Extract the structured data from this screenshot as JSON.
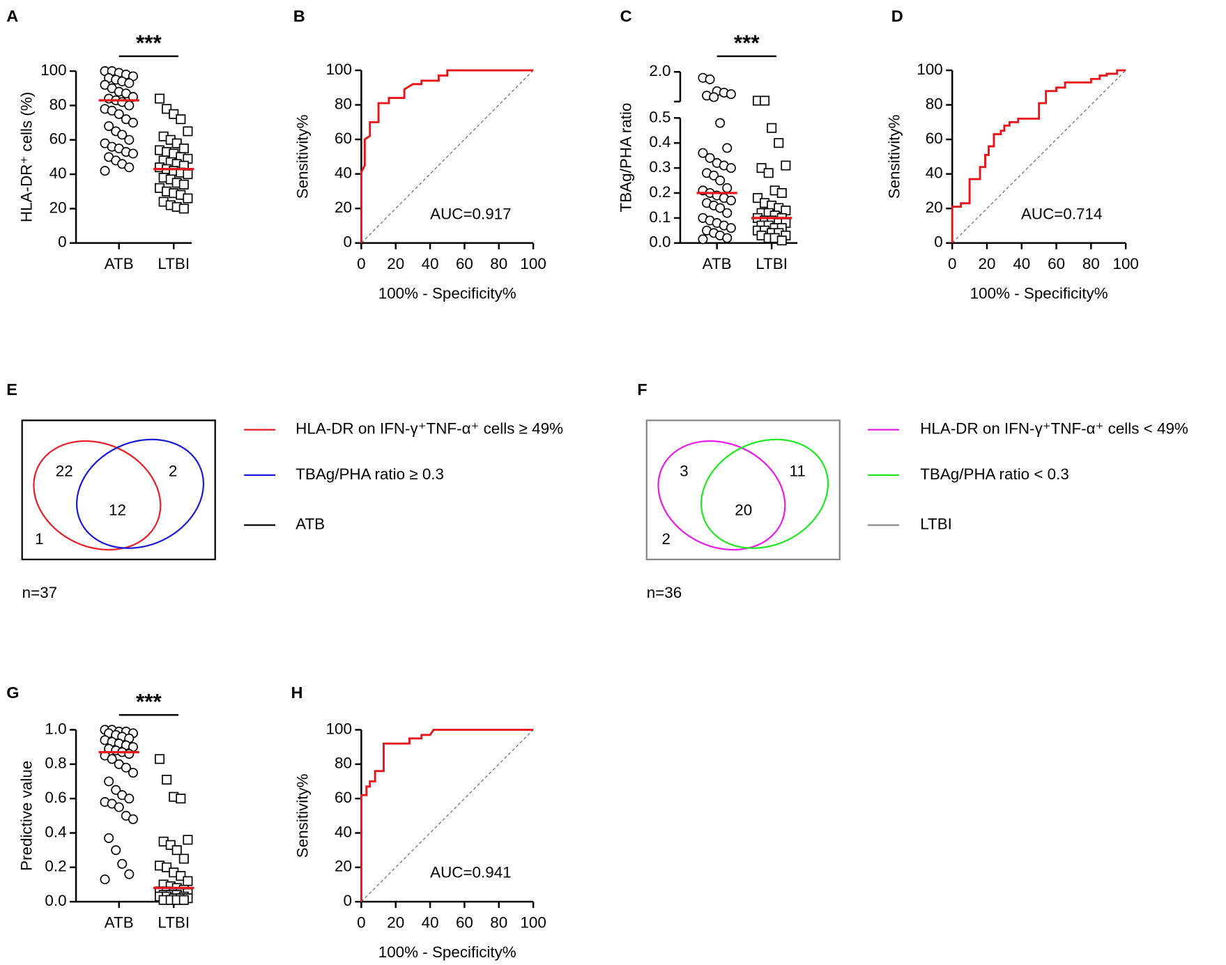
{
  "chart_data": [
    {
      "panel": "A",
      "type": "dot",
      "ylabel": "HLA-DR⁺ cells (%)",
      "categories": [
        "ATB",
        "LTBI"
      ],
      "markers": [
        "circle",
        "square"
      ],
      "values": [
        [
          100,
          100,
          99,
          98,
          97,
          96,
          95,
          94,
          93,
          92,
          90,
          88,
          87,
          85,
          84,
          83,
          82,
          80,
          78,
          77,
          75,
          72,
          70,
          68,
          65,
          63,
          60,
          58,
          56,
          55,
          53,
          52,
          50,
          48,
          46,
          44,
          42
        ],
        [
          84,
          78,
          75,
          72,
          65,
          62,
          60,
          58,
          55,
          54,
          53,
          52,
          50,
          49,
          48,
          47,
          46,
          45,
          44,
          43,
          42,
          41,
          40,
          38,
          37,
          35,
          34,
          32,
          30,
          29,
          28,
          26,
          24,
          22,
          21,
          20
        ]
      ],
      "medians": [
        83,
        43
      ],
      "median_color": "#e8151b",
      "significance": "***",
      "ylim": [
        0,
        100
      ],
      "yticks": [
        0,
        20,
        40,
        60,
        80,
        100
      ]
    },
    {
      "panel": "B",
      "type": "roc",
      "xlabel": "100% - Specificity%",
      "ylabel": "Sensitivity%",
      "annotation": "AUC=0.917",
      "color": "#e8151b",
      "x": [
        0,
        0,
        2,
        2,
        5,
        5,
        10,
        10,
        16,
        16,
        25,
        25,
        30,
        35,
        35,
        45,
        45,
        50,
        50,
        100
      ],
      "y": [
        0,
        41,
        45,
        60,
        62,
        70,
        70,
        81,
        81,
        84,
        84,
        89,
        92,
        92,
        94,
        94,
        97,
        97,
        100,
        100
      ],
      "xlim": [
        0,
        100
      ],
      "ylim": [
        0,
        100
      ],
      "xticks": [
        0,
        20,
        40,
        60,
        80,
        100
      ],
      "yticks": [
        0,
        20,
        40,
        60,
        80,
        100
      ]
    },
    {
      "panel": "C",
      "type": "dot",
      "ylabel": "TBAg/PHA ratio",
      "categories": [
        "ATB",
        "LTBI"
      ],
      "markers": [
        "circle",
        "square"
      ],
      "values": [
        [
          1.8,
          1.75,
          1.35,
          1.3,
          1.25,
          1.2,
          1.15,
          0.48,
          0.38,
          0.36,
          0.34,
          0.32,
          0.31,
          0.3,
          0.28,
          0.27,
          0.25,
          0.22,
          0.21,
          0.2,
          0.19,
          0.18,
          0.17,
          0.16,
          0.15,
          0.14,
          0.12,
          0.1,
          0.09,
          0.08,
          0.07,
          0.06,
          0.05,
          0.04,
          0.03,
          0.02,
          0.015
        ],
        [
          1.03,
          1.03,
          0.46,
          0.4,
          0.31,
          0.3,
          0.28,
          0.21,
          0.2,
          0.18,
          0.16,
          0.15,
          0.14,
          0.13,
          0.12,
          0.12,
          0.11,
          0.1,
          0.1,
          0.09,
          0.09,
          0.08,
          0.08,
          0.07,
          0.07,
          0.06,
          0.06,
          0.05,
          0.05,
          0.04,
          0.04,
          0.03,
          0.03,
          0.02,
          0.02,
          0.01
        ]
      ],
      "medians": [
        0.2,
        0.1
      ],
      "median_color": "#e8151b",
      "significance": "***",
      "ylim": [
        0,
        0.5
      ],
      "yticks": [
        {
          "value": 0,
          "label": "0.0"
        },
        0.1,
        0.2,
        0.3,
        0.4,
        0.5
      ],
      "ylim_upper": [
        1.0,
        2.0
      ],
      "yticks_upper": [
        {
          "value": 2,
          "label": "2.0"
        }
      ]
    },
    {
      "panel": "D",
      "type": "roc",
      "xlabel": "100% - Specificity%",
      "ylabel": "Sensitivity%",
      "annotation": "AUC=0.714",
      "color": "#e8151b",
      "x": [
        0,
        0,
        5,
        5,
        10,
        10,
        16,
        16,
        19,
        19,
        21,
        21,
        24,
        24,
        28,
        28,
        30,
        30,
        33,
        33,
        38,
        38,
        50,
        50,
        54,
        54,
        60,
        60,
        65,
        65,
        80,
        80,
        85,
        85,
        89,
        89,
        95,
        95,
        100
      ],
      "y": [
        0,
        21,
        21,
        23,
        23,
        37,
        37,
        44,
        44,
        51,
        51,
        56,
        56,
        63,
        63,
        65,
        65,
        68,
        68,
        70,
        70,
        72,
        72,
        81,
        81,
        88,
        88,
        90,
        90,
        93,
        93,
        95,
        95,
        97,
        97,
        98,
        98,
        100,
        100
      ],
      "xlim": [
        0,
        100
      ],
      "ylim": [
        0,
        100
      ],
      "xticks": [
        0,
        20,
        40,
        60,
        80,
        100
      ],
      "yticks": [
        0,
        20,
        40,
        60,
        80,
        100
      ]
    },
    {
      "panel": "E",
      "type": "venn",
      "sets": [
        {
          "name": "HLA-DR on IFN-γ⁺TNF-α⁺ cells ≥ 49%",
          "color": "#e8202a"
        },
        {
          "name": "TBAg/PHA ratio ≥ 0.3",
          "color": "#1c1cd6"
        }
      ],
      "universe": {
        "name": "ATB",
        "color": "#000000"
      },
      "counts": {
        "only_a": 22,
        "only_b": 2,
        "both": 12,
        "neither": 1
      },
      "n_label": "n=37"
    },
    {
      "panel": "F",
      "type": "venn",
      "sets": [
        {
          "name": "HLA-DR on IFN-γ⁺TNF-α⁺ cells < 49%",
          "color": "#e81ee8"
        },
        {
          "name": "TBAg/PHA ratio < 0.3",
          "color": "#22e822"
        }
      ],
      "universe": {
        "name": "LTBI",
        "color": "#888888"
      },
      "counts": {
        "only_a": 3,
        "only_b": 11,
        "both": 20,
        "neither": 2
      },
      "n_label": "n=36"
    },
    {
      "panel": "G",
      "type": "dot",
      "ylabel": "Predictive value",
      "categories": [
        "ATB",
        "LTBI"
      ],
      "markers": [
        "circle",
        "square"
      ],
      "values": [
        [
          1.0,
          1.0,
          0.99,
          0.99,
          0.98,
          0.98,
          0.97,
          0.96,
          0.95,
          0.94,
          0.93,
          0.92,
          0.91,
          0.9,
          0.89,
          0.88,
          0.87,
          0.86,
          0.85,
          0.83,
          0.8,
          0.78,
          0.75,
          0.7,
          0.65,
          0.62,
          0.6,
          0.58,
          0.57,
          0.55,
          0.5,
          0.48,
          0.37,
          0.3,
          0.22,
          0.16,
          0.13
        ],
        [
          0.83,
          0.71,
          0.61,
          0.6,
          0.36,
          0.35,
          0.33,
          0.3,
          0.25,
          0.21,
          0.2,
          0.17,
          0.15,
          0.12,
          0.1,
          0.09,
          0.08,
          0.07,
          0.06,
          0.06,
          0.05,
          0.05,
          0.05,
          0.04,
          0.04,
          0.04,
          0.03,
          0.03,
          0.03,
          0.02,
          0.02,
          0.02,
          0.01,
          0.01,
          0.01,
          0.01
        ]
      ],
      "medians": [
        0.87,
        0.08
      ],
      "median_color": "#e8151b",
      "significance": "***",
      "ylim": [
        0,
        1
      ],
      "yticks": [
        {
          "value": 0,
          "label": "0.0"
        },
        0.2,
        0.4,
        0.6,
        0.8,
        {
          "value": 1,
          "label": "1.0"
        }
      ]
    },
    {
      "panel": "H",
      "type": "roc",
      "xlabel": "100% - Specificity%",
      "ylabel": "Sensitivity%",
      "annotation": "AUC=0.941",
      "color": "#e8151b",
      "x": [
        0,
        0,
        3,
        3,
        5,
        5,
        8,
        8,
        13,
        13,
        28,
        28,
        35,
        35,
        40,
        42,
        100
      ],
      "y": [
        0,
        62,
        62,
        67,
        67,
        70,
        70,
        76,
        76,
        92,
        92,
        95,
        95,
        97,
        97,
        100,
        100
      ],
      "xlim": [
        0,
        100
      ],
      "ylim": [
        0,
        100
      ],
      "xticks": [
        0,
        20,
        40,
        60,
        80,
        100
      ],
      "yticks": [
        0,
        20,
        40,
        60,
        80,
        100
      ]
    }
  ]
}
